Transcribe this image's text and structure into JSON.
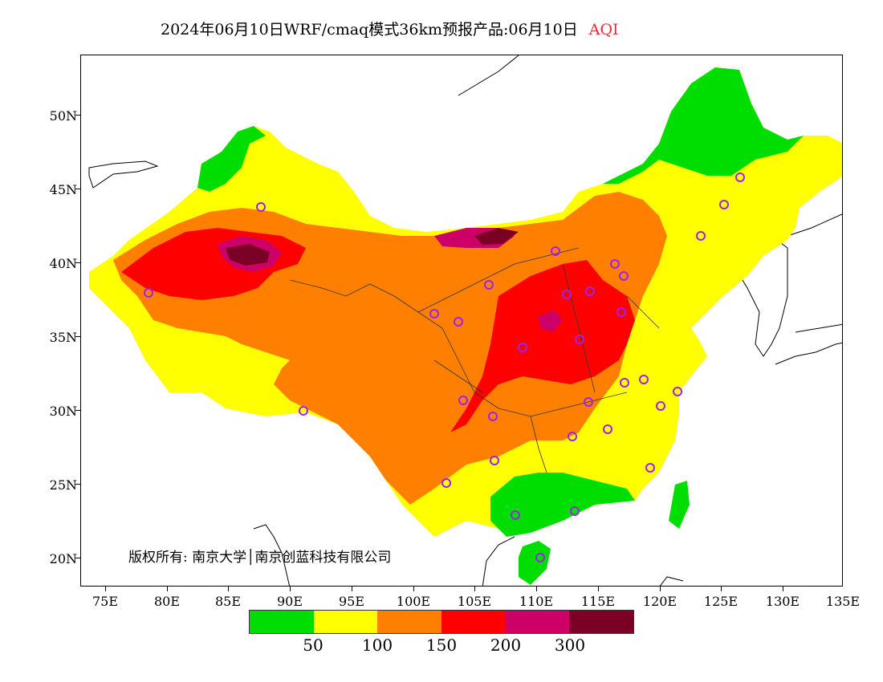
{
  "title": {
    "main": "2024年06月10日WRF/cmaq模式36km预报产品:06月10日",
    "product": "AQI"
  },
  "axes": {
    "lat_labels": [
      "50N",
      "45N",
      "40N",
      "35N",
      "30N",
      "25N",
      "20N"
    ],
    "lon_labels": [
      "75E",
      "80E",
      "85E",
      "90E",
      "95E",
      "100E",
      "105E",
      "110E",
      "115E",
      "120E",
      "125E",
      "130E",
      "135E"
    ]
  },
  "legend": {
    "colors": [
      "#00dd00",
      "#ffff00",
      "#ff8000",
      "#ff0000",
      "#cc0066",
      "#7a0026"
    ],
    "labels": [
      "50",
      "100",
      "150",
      "200",
      "300"
    ]
  },
  "copyright": "版权所有: 南京大学│南京创蓝科技有限公司",
  "colors": {
    "good": "#00dd00",
    "moderate": "#ffff00",
    "sensitive": "#ff8000",
    "unhealthy": "#ff0000",
    "very_unhealthy": "#cc0066",
    "hazardous": "#7a0026",
    "station_marker": "#a020f0"
  }
}
